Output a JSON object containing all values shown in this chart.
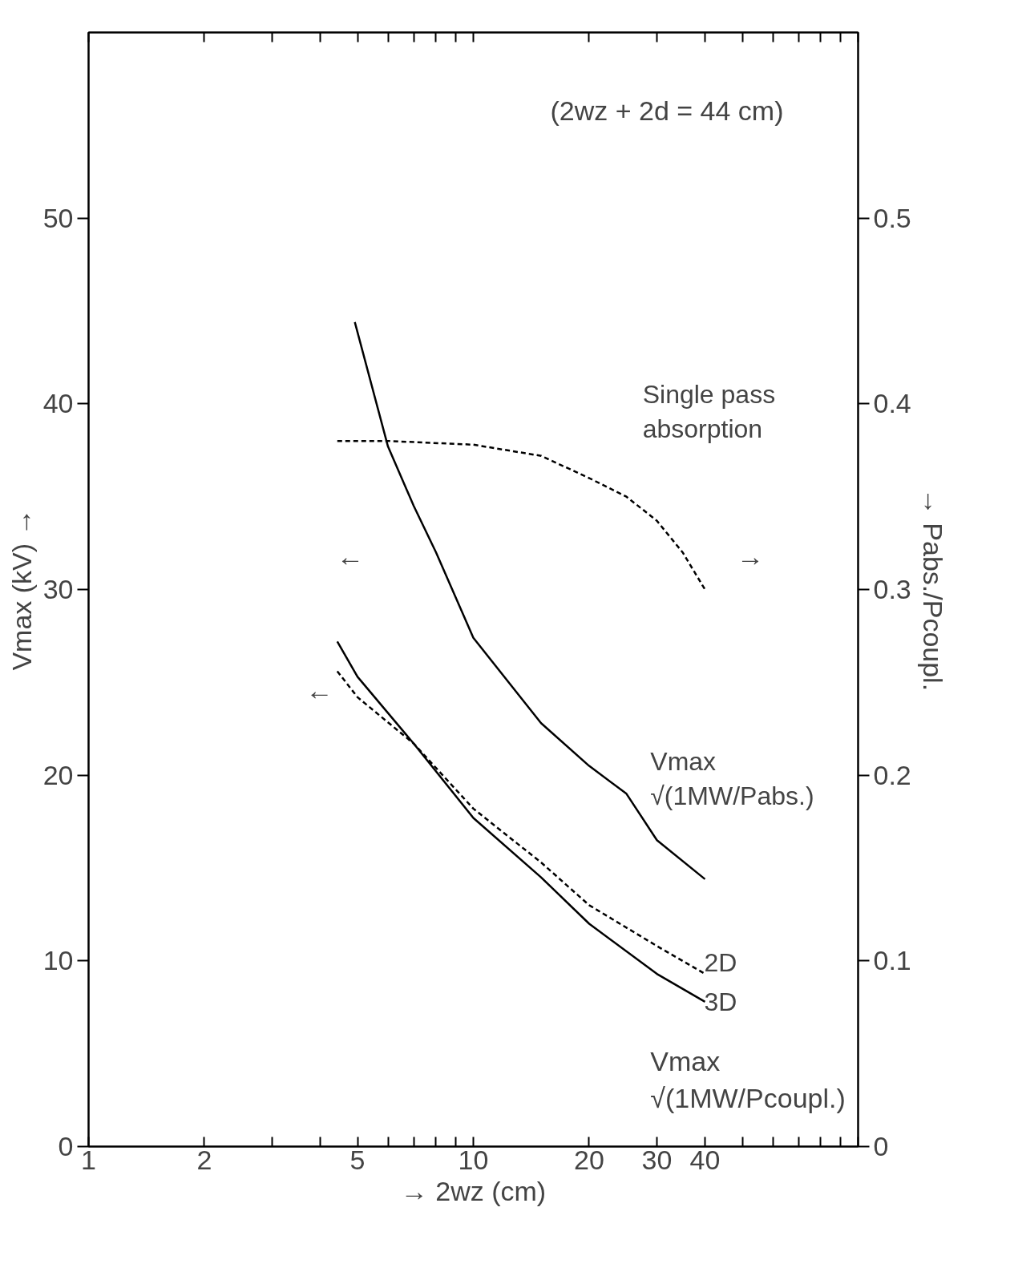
{
  "chart_data": {
    "type": "line",
    "xlabel": "→ 2wz (cm)",
    "ylabel": "Vmax (kV) →",
    "y2label": "→ Pabs./Pcoupl.",
    "log": "x",
    "xlim": [
      1,
      100
    ],
    "xticks": [
      1,
      2,
      {
        "value": 3,
        "label": null
      },
      {
        "value": 4,
        "label": null
      },
      5,
      {
        "value": 6,
        "label": null
      },
      {
        "value": 7,
        "label": null
      },
      {
        "value": 8,
        "label": null
      },
      {
        "value": 9,
        "label": null
      },
      10,
      20,
      30,
      40,
      {
        "value": 50,
        "label": null
      },
      {
        "value": 60,
        "label": null
      },
      {
        "value": 70,
        "label": null
      },
      {
        "value": 80,
        "label": null
      },
      {
        "value": 90,
        "label": null
      },
      {
        "value": 100,
        "label": null
      }
    ],
    "ylim": [
      0,
      60
    ],
    "yticks": [
      0,
      10,
      20,
      30,
      40,
      50
    ],
    "y2lim": [
      0,
      0.6
    ],
    "y2ticks": [
      0,
      0.1,
      0.2,
      0.3,
      0.4,
      0.5
    ],
    "grid": false,
    "legend": false,
    "series": [
      {
        "name": "Vmax √(1MW/Pabs.)",
        "color": "#000000",
        "line_style": "solid",
        "x": [
          4.92,
          6,
          7,
          8,
          10,
          15,
          20,
          25,
          30,
          40
        ],
        "values": [
          44.4,
          37.7,
          34.5,
          32,
          27.4,
          22.8,
          20.5,
          19,
          16.5,
          14.4
        ]
      },
      {
        "name": "Single pass absorption",
        "color": "#000000",
        "line_style": "dashed",
        "axis": "y2",
        "x": [
          4.43,
          6,
          10,
          15,
          20,
          25,
          30,
          35,
          40
        ],
        "values": [
          0.38,
          0.38,
          0.378,
          0.372,
          0.36,
          0.35,
          0.337,
          0.32,
          0.3
        ]
      },
      {
        "name": "2D",
        "color": "#000000",
        "line_style": "dashed",
        "x": [
          4.43,
          5,
          7,
          10,
          15,
          20,
          30,
          40
        ],
        "values": [
          25.6,
          24.2,
          21.7,
          18.2,
          15.3,
          13.0,
          10.8,
          9.3
        ]
      },
      {
        "name": "3D",
        "color": "#000000",
        "line_style": "solid",
        "x": [
          4.43,
          5,
          7,
          10,
          15,
          20,
          30,
          40
        ],
        "values": [
          27.2,
          25.3,
          21.7,
          17.7,
          14.5,
          12.0,
          9.3,
          7.8
        ]
      }
    ],
    "annotations": [
      "(2wz + 2d = 44 cm)",
      "Vmax √(1MW/Pcoupl.)",
      "←",
      "←",
      "→"
    ]
  }
}
